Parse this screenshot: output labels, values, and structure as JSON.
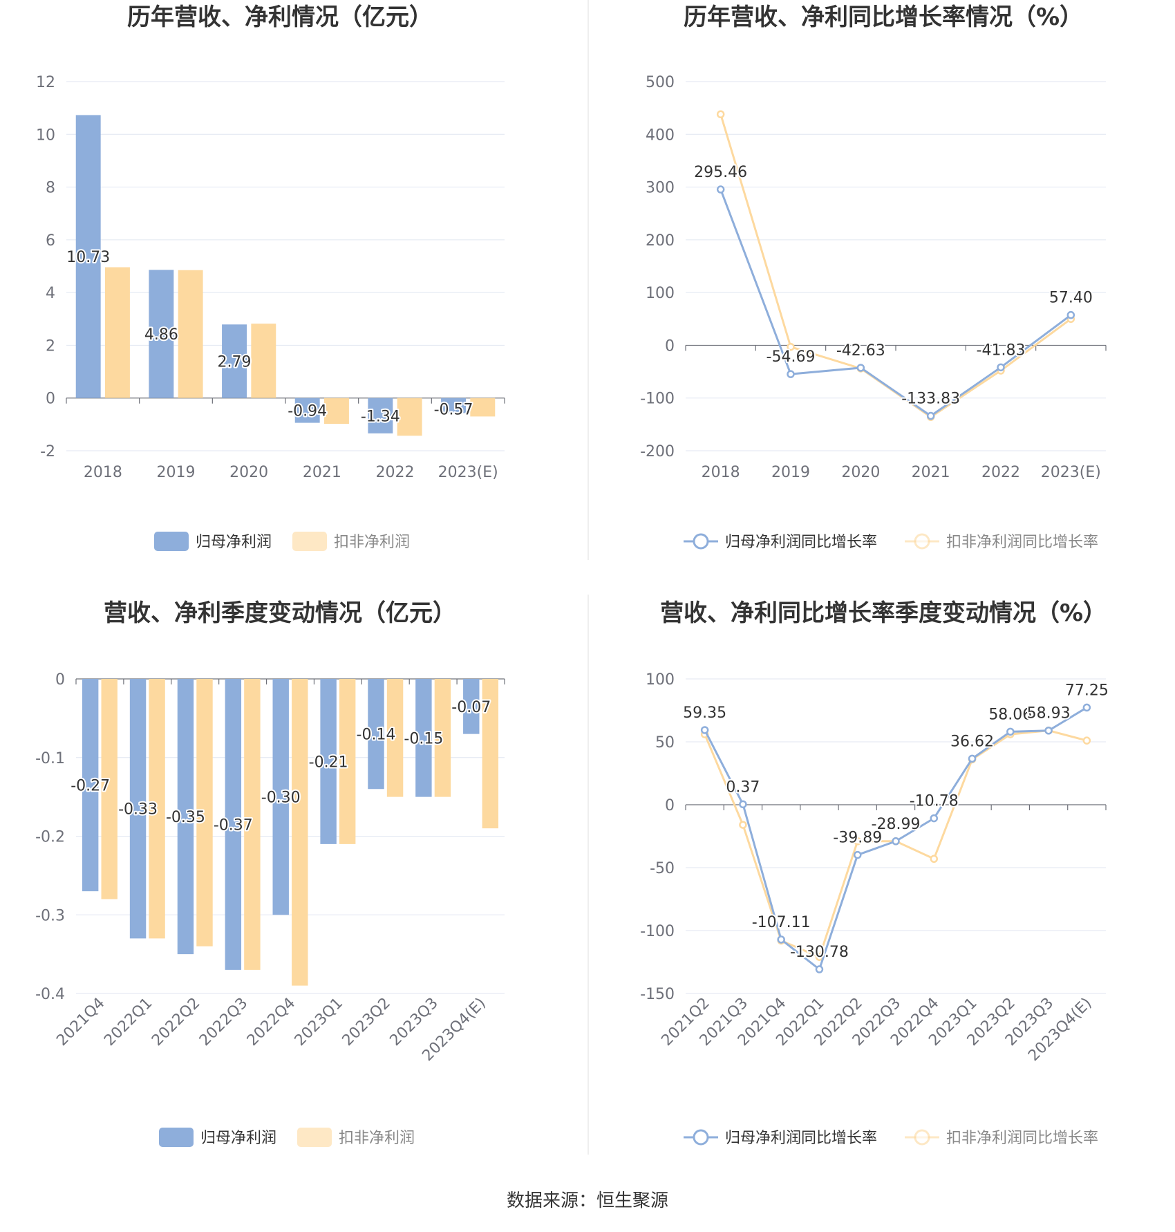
{
  "colors": {
    "net": "#8eaedb",
    "deduct": "#fdd99f"
  },
  "source": "数据来源：恒生聚源",
  "chart_data": [
    {
      "id": "annual-profit",
      "type": "bar",
      "title": "历年营收、净利情况（亿元）",
      "categories": [
        "2018",
        "2019",
        "2020",
        "2021",
        "2022",
        "2023(E)"
      ],
      "ylim": [
        -2,
        12
      ],
      "yticks": [
        -2,
        0,
        2,
        4,
        6,
        8,
        10,
        12
      ],
      "tick_labels": [
        "-2",
        "0",
        "2",
        "4",
        "6",
        "8",
        "10",
        "12"
      ],
      "grid": true,
      "legend_position": "bottom",
      "series": [
        {
          "name": "归母净利润",
          "values": [
            10.73,
            4.86,
            2.79,
            -0.94,
            -1.34,
            -0.57
          ],
          "labels": [
            "10.73",
            "4.86",
            "2.79",
            "-0.94",
            "-1.34",
            "-0.57"
          ]
        },
        {
          "name": "扣非净利润",
          "values": [
            4.96,
            4.85,
            2.82,
            -0.98,
            -1.43,
            -0.7
          ]
        }
      ]
    },
    {
      "id": "annual-growth",
      "type": "line",
      "title": "历年营收、净利同比增长率情况（%）",
      "categories": [
        "2018",
        "2019",
        "2020",
        "2021",
        "2022",
        "2023(E)"
      ],
      "ylim": [
        -200,
        500
      ],
      "yticks": [
        -200,
        -100,
        0,
        100,
        200,
        300,
        400,
        500
      ],
      "tick_labels": [
        "-200",
        "-100",
        "0",
        "100",
        "200",
        "300",
        "400",
        "500"
      ],
      "grid": true,
      "legend_position": "bottom",
      "series": [
        {
          "name": "归母净利润同比增长率",
          "values": [
            295.46,
            -54.69,
            -42.63,
            -133.83,
            -41.83,
            57.4
          ],
          "labels": [
            "295.46",
            "-54.69",
            "-42.63",
            "-133.83",
            "-41.83",
            "57.40"
          ]
        },
        {
          "name": "扣非净利润同比增长率",
          "values": [
            438,
            -3,
            -44,
            -136,
            -48,
            50
          ]
        }
      ]
    },
    {
      "id": "quarterly-profit",
      "type": "bar",
      "title": "营收、净利季度变动情况（亿元）",
      "categories": [
        "2021Q4",
        "2022Q1",
        "2022Q2",
        "2022Q3",
        "2022Q4",
        "2023Q1",
        "2023Q2",
        "2023Q3",
        "2023Q4(E)"
      ],
      "ylim": [
        -0.4,
        0
      ],
      "yticks": [
        -0.4,
        -0.3,
        -0.2,
        -0.1,
        0
      ],
      "tick_labels": [
        "-0.4",
        "-0.3",
        "-0.2",
        "-0.1",
        "0"
      ],
      "grid": true,
      "legend_position": "bottom",
      "series": [
        {
          "name": "归母净利润",
          "values": [
            -0.27,
            -0.33,
            -0.35,
            -0.37,
            -0.3,
            -0.21,
            -0.14,
            -0.15,
            -0.07
          ],
          "labels": [
            "-0.27",
            "-0.33",
            "-0.35",
            "-0.37",
            "-0.30",
            "-0.21",
            "-0.14",
            "-0.15",
            "-0.07"
          ]
        },
        {
          "name": "扣非净利润",
          "values": [
            -0.28,
            -0.33,
            -0.34,
            -0.37,
            -0.39,
            -0.21,
            -0.15,
            -0.15,
            -0.19
          ]
        }
      ]
    },
    {
      "id": "quarterly-growth",
      "type": "line",
      "title": "营收、净利同比增长率季度变动情况（%）",
      "categories": [
        "2021Q2",
        "2021Q3",
        "2021Q4",
        "2022Q1",
        "2022Q2",
        "2022Q3",
        "2022Q4",
        "2023Q1",
        "2023Q2",
        "2023Q3",
        "2023Q4(E)"
      ],
      "ylim": [
        -150,
        100
      ],
      "yticks": [
        -150,
        -100,
        -50,
        0,
        50,
        100
      ],
      "tick_labels": [
        "-150",
        "-100",
        "-50",
        "0",
        "50",
        "100"
      ],
      "grid": true,
      "legend_position": "bottom",
      "series": [
        {
          "name": "归母净利润同比增长率",
          "values": [
            59.35,
            0.37,
            -107.11,
            -130.78,
            -39.89,
            -28.99,
            -10.78,
            36.62,
            58.06,
            58.93,
            77.25
          ],
          "labels": [
            "59.35",
            "0.37",
            "-107.11",
            "-130.78",
            "-39.89",
            "-28.99",
            "-10.78",
            "36.62",
            "58.06",
            "58.93",
            "77.25"
          ]
        },
        {
          "name": "扣非净利润同比增长率",
          "values": [
            56,
            -16,
            -108,
            -121,
            -29,
            -29,
            -43,
            36,
            56,
            59,
            51
          ]
        }
      ]
    }
  ]
}
